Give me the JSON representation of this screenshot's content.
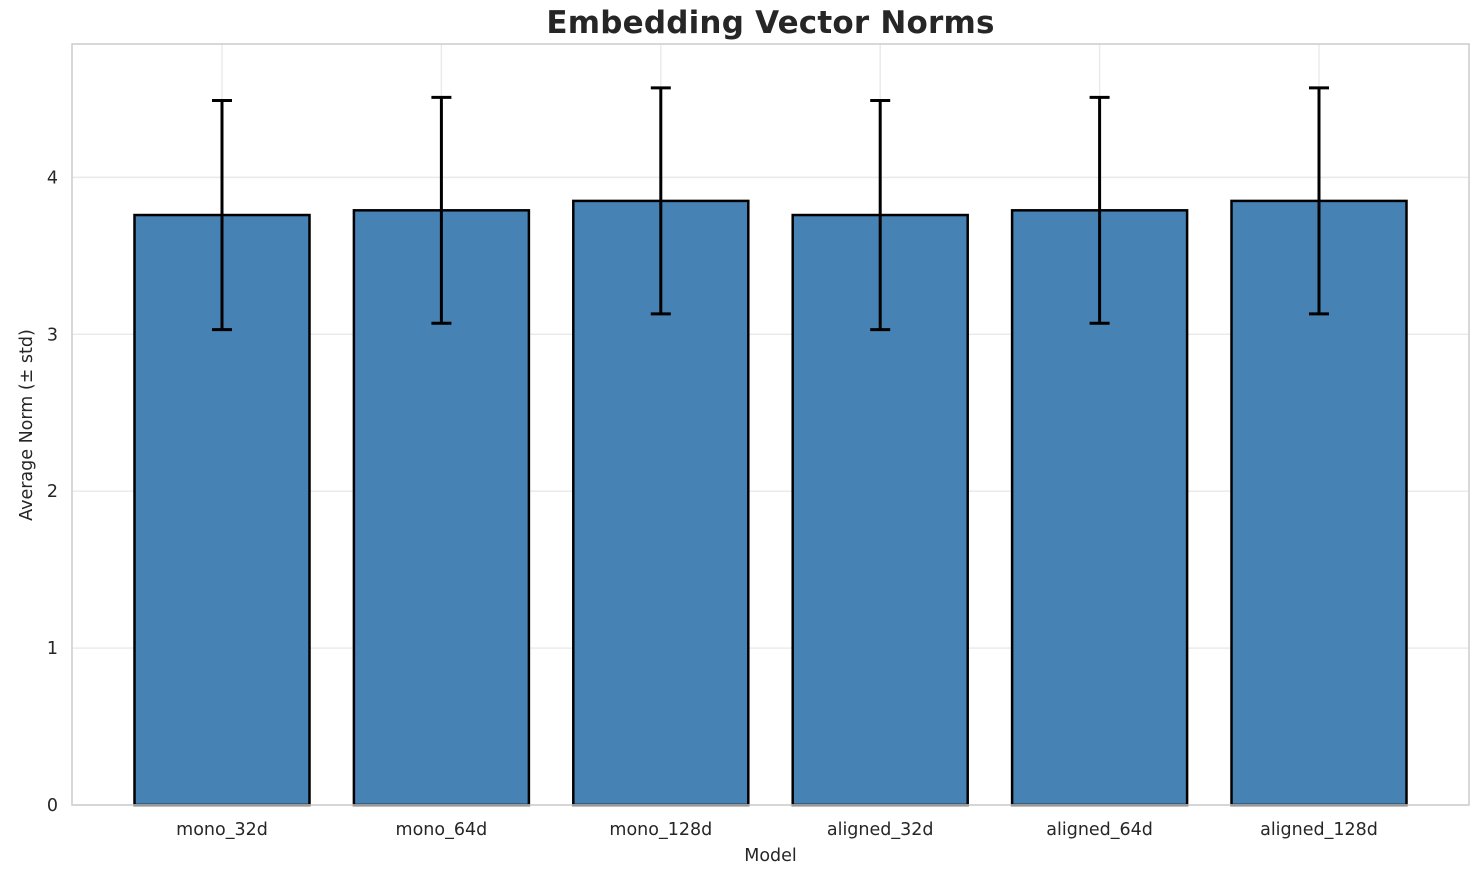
{
  "chart_data": {
    "type": "bar",
    "title": "Embedding Vector Norms",
    "xlabel": "Model",
    "ylabel": "Average Norm (± std)",
    "categories": [
      "mono_32d",
      "mono_64d",
      "mono_128d",
      "aligned_32d",
      "aligned_64d",
      "aligned_128d"
    ],
    "series": [
      {
        "name": "Average Norm",
        "values": [
          3.76,
          3.79,
          3.85,
          3.76,
          3.79,
          3.85
        ],
        "errors": [
          0.73,
          0.72,
          0.72,
          0.73,
          0.72,
          0.72
        ]
      }
    ],
    "yticks": [
      0,
      1,
      2,
      3,
      4
    ],
    "ylim": [
      0,
      4.85
    ],
    "grid": "both",
    "legend": "none",
    "colors": {
      "bar_fill": "#4682B4",
      "bar_edge": "#000000",
      "error_bar": "#000000",
      "gridline": "#e9e9e9",
      "spine": "#cccccc",
      "text": "#262626",
      "background": "#ffffff"
    }
  }
}
